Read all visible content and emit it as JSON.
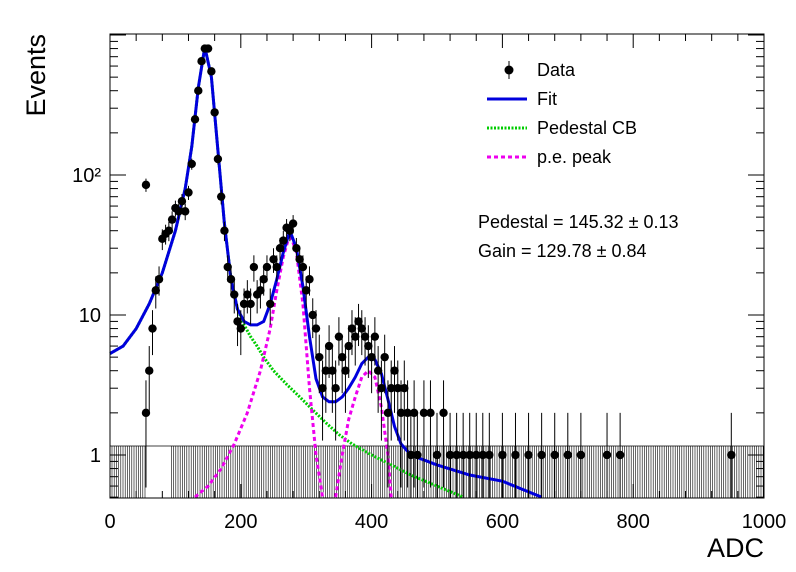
{
  "chart_data": {
    "type": "scatter",
    "title": "",
    "xlabel": "ADC",
    "ylabel": "Events",
    "xlim": [
      0,
      1000
    ],
    "ylim": [
      0.5,
      1000
    ],
    "y_scale": "log",
    "x_ticks": [
      0,
      200,
      400,
      600,
      800,
      1000
    ],
    "x_tick_labels": [
      "0",
      "200",
      "400",
      "600",
      "800",
      "1000"
    ],
    "y_tick_labels": [
      "1",
      "10",
      "10²"
    ],
    "y_tick_values": [
      1,
      10,
      100
    ],
    "grid": false,
    "legend_position": "top-right",
    "legend": [
      {
        "label": "Data",
        "style": "marker",
        "color": "#000000"
      },
      {
        "label": "Fit",
        "style": "solid",
        "color": "#0000dd"
      },
      {
        "label": "Pedestal CB",
        "style": "dotted",
        "color": "#00cc00"
      },
      {
        "label": "p.e. peak",
        "style": "dashed",
        "color": "#ee00ee"
      }
    ],
    "annotations": [
      {
        "text": "Pedestal = 145.32 ± 0.13"
      },
      {
        "text": "Gain = 129.78 ± 0.84"
      }
    ],
    "series": [
      {
        "name": "Data",
        "type": "scatter",
        "color": "#000000",
        "points": [
          [
            55,
            85
          ],
          [
            55,
            2
          ],
          [
            60,
            4
          ],
          [
            65,
            8
          ],
          [
            70,
            15
          ],
          [
            75,
            18
          ],
          [
            80,
            35
          ],
          [
            85,
            38
          ],
          [
            90,
            40
          ],
          [
            95,
            48
          ],
          [
            100,
            58
          ],
          [
            105,
            55
          ],
          [
            110,
            65
          ],
          [
            115,
            55
          ],
          [
            120,
            75
          ],
          [
            125,
            120
          ],
          [
            130,
            250
          ],
          [
            135,
            400
          ],
          [
            140,
            650
          ],
          [
            145,
            800
          ],
          [
            150,
            800
          ],
          [
            155,
            550
          ],
          [
            160,
            280
          ],
          [
            165,
            130
          ],
          [
            170,
            70
          ],
          [
            175,
            40
          ],
          [
            180,
            22
          ],
          [
            185,
            18
          ],
          [
            190,
            14
          ],
          [
            195,
            9
          ],
          [
            200,
            8
          ],
          [
            205,
            12
          ],
          [
            210,
            14
          ],
          [
            215,
            12
          ],
          [
            220,
            22
          ],
          [
            225,
            14
          ],
          [
            230,
            15
          ],
          [
            235,
            18
          ],
          [
            240,
            22
          ],
          [
            245,
            12
          ],
          [
            250,
            25
          ],
          [
            255,
            22
          ],
          [
            260,
            30
          ],
          [
            265,
            34
          ],
          [
            270,
            42
          ],
          [
            275,
            40
          ],
          [
            280,
            45
          ],
          [
            285,
            30
          ],
          [
            290,
            25
          ],
          [
            295,
            22
          ],
          [
            300,
            15
          ],
          [
            305,
            18
          ],
          [
            310,
            10
          ],
          [
            315,
            8
          ],
          [
            320,
            5
          ],
          [
            325,
            3
          ],
          [
            330,
            4
          ],
          [
            335,
            6
          ],
          [
            340,
            4
          ],
          [
            345,
            3
          ],
          [
            350,
            7
          ],
          [
            355,
            5
          ],
          [
            360,
            4
          ],
          [
            365,
            6
          ],
          [
            370,
            8
          ],
          [
            375,
            7
          ],
          [
            380,
            9
          ],
          [
            385,
            8
          ],
          [
            390,
            7
          ],
          [
            395,
            6
          ],
          [
            400,
            5
          ],
          [
            405,
            7
          ],
          [
            410,
            4
          ],
          [
            415,
            3
          ],
          [
            420,
            5
          ],
          [
            425,
            2
          ],
          [
            430,
            3
          ],
          [
            435,
            4
          ],
          [
            440,
            3
          ],
          [
            445,
            2
          ],
          [
            450,
            3
          ],
          [
            455,
            2
          ],
          [
            460,
            1
          ],
          [
            465,
            2
          ],
          [
            470,
            1
          ],
          [
            480,
            2
          ],
          [
            490,
            2
          ],
          [
            500,
            1
          ],
          [
            510,
            2
          ],
          [
            520,
            1
          ],
          [
            530,
            1
          ],
          [
            540,
            1
          ],
          [
            550,
            1
          ],
          [
            560,
            1
          ],
          [
            570,
            1
          ],
          [
            580,
            1
          ],
          [
            600,
            1
          ],
          [
            620,
            1
          ],
          [
            640,
            1
          ],
          [
            660,
            1
          ],
          [
            680,
            1
          ],
          [
            700,
            1
          ],
          [
            720,
            1
          ],
          [
            760,
            1
          ],
          [
            780,
            1
          ],
          [
            950,
            1
          ]
        ]
      },
      {
        "name": "Fit",
        "type": "line",
        "color": "#0000dd",
        "points": [
          [
            0,
            5.3
          ],
          [
            20,
            6
          ],
          [
            40,
            8
          ],
          [
            60,
            12
          ],
          [
            80,
            20
          ],
          [
            100,
            40
          ],
          [
            115,
            80
          ],
          [
            125,
            160
          ],
          [
            135,
            420
          ],
          [
            145,
            820
          ],
          [
            155,
            500
          ],
          [
            165,
            150
          ],
          [
            175,
            45
          ],
          [
            185,
            18
          ],
          [
            195,
            11
          ],
          [
            205,
            9
          ],
          [
            215,
            8.5
          ],
          [
            225,
            8.5
          ],
          [
            235,
            9
          ],
          [
            245,
            12
          ],
          [
            255,
            18
          ],
          [
            265,
            28
          ],
          [
            275,
            40
          ],
          [
            285,
            30
          ],
          [
            295,
            16
          ],
          [
            305,
            7
          ],
          [
            315,
            3.5
          ],
          [
            325,
            2.6
          ],
          [
            335,
            2.4
          ],
          [
            345,
            2.4
          ],
          [
            355,
            2.6
          ],
          [
            365,
            3
          ],
          [
            375,
            3.6
          ],
          [
            385,
            4.5
          ],
          [
            395,
            5
          ],
          [
            405,
            4.8
          ],
          [
            415,
            3.8
          ],
          [
            425,
            2.5
          ],
          [
            435,
            1.6
          ],
          [
            445,
            1.2
          ],
          [
            460,
            1.0
          ],
          [
            500,
            0.85
          ],
          [
            550,
            0.72
          ],
          [
            600,
            0.65
          ],
          [
            660,
            0.5
          ]
        ]
      },
      {
        "name": "Pedestal CB",
        "type": "line",
        "color": "#00cc00",
        "points": [
          [
            0,
            5.3
          ],
          [
            20,
            6
          ],
          [
            40,
            8
          ],
          [
            60,
            12
          ],
          [
            80,
            20
          ],
          [
            100,
            40
          ],
          [
            115,
            80
          ],
          [
            125,
            160
          ],
          [
            135,
            420
          ],
          [
            145,
            820
          ],
          [
            155,
            500
          ],
          [
            165,
            150
          ],
          [
            175,
            45
          ],
          [
            185,
            18
          ],
          [
            195,
            11
          ],
          [
            205,
            8.5
          ],
          [
            215,
            7
          ],
          [
            225,
            6
          ],
          [
            235,
            5
          ],
          [
            250,
            4
          ],
          [
            270,
            3.2
          ],
          [
            290,
            2.6
          ],
          [
            310,
            2.1
          ],
          [
            330,
            1.7
          ],
          [
            350,
            1.4
          ],
          [
            370,
            1.2
          ],
          [
            400,
            1.0
          ],
          [
            430,
            0.85
          ],
          [
            460,
            0.72
          ],
          [
            500,
            0.6
          ],
          [
            540,
            0.5
          ]
        ]
      },
      {
        "name": "p.e. peak",
        "type": "line",
        "color": "#ee00ee",
        "points": [
          [
            130,
            0.5
          ],
          [
            150,
            0.6
          ],
          [
            170,
            0.8
          ],
          [
            190,
            1.2
          ],
          [
            210,
            2
          ],
          [
            230,
            4
          ],
          [
            245,
            8
          ],
          [
            255,
            15
          ],
          [
            265,
            26
          ],
          [
            275,
            38
          ],
          [
            285,
            28
          ],
          [
            295,
            12
          ],
          [
            305,
            3
          ],
          [
            315,
            1
          ],
          [
            325,
            0.5
          ],
          [
            345,
            0.5
          ],
          [
            355,
            1
          ],
          [
            365,
            1.8
          ],
          [
            375,
            2.6
          ],
          [
            385,
            3.6
          ],
          [
            395,
            4
          ],
          [
            405,
            3.6
          ],
          [
            415,
            2.2
          ],
          [
            425,
            1
          ],
          [
            430,
            0.5
          ]
        ]
      }
    ]
  }
}
